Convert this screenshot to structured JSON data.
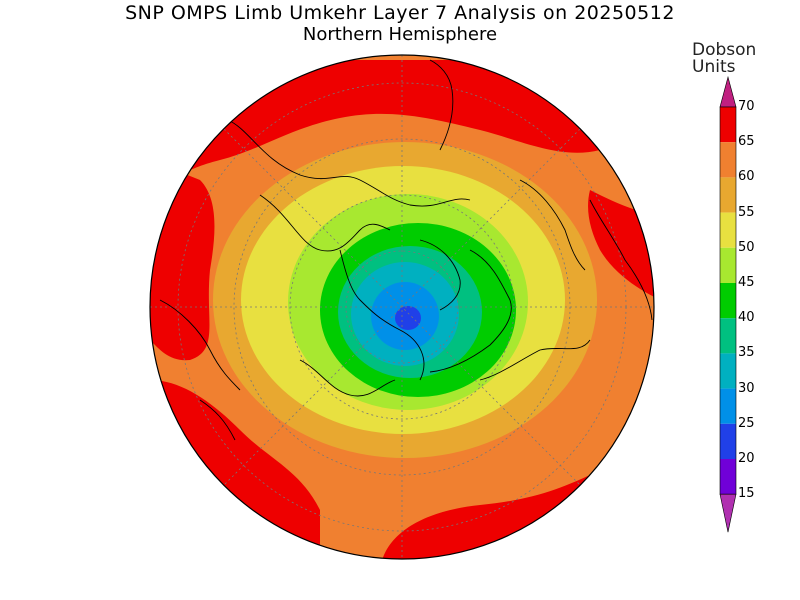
{
  "title": "SNP OMPS Limb Umkehr Layer 7 Analysis on 20250512",
  "subtitle": "Northern Hemisphere",
  "legend": {
    "unit_line1": "Dobson",
    "unit_line2": "Units",
    "ticks": [
      "70",
      "65",
      "60",
      "55",
      "50",
      "45",
      "40",
      "35",
      "30",
      "25",
      "20",
      "15"
    ],
    "colors": [
      "#ee0000",
      "#f08030",
      "#e8a830",
      "#e8e040",
      "#a8e830",
      "#00cc00",
      "#00c080",
      "#00b0c0",
      "#0090e8",
      "#2040e8",
      "#7000d8",
      "#a000c8"
    ],
    "over_color": "#c02080",
    "under_color": "#b030b0"
  },
  "map": {
    "projection": "north-polar-stereographic",
    "grid": true,
    "levels_colors": {
      "ge65": "#ee0000",
      "60_65": "#f08030",
      "55_60": "#e8a830",
      "50_55": "#e8e040",
      "45_50": "#a8e830",
      "40_45": "#00cc00",
      "35_40": "#00c080",
      "30_35": "#00b0c0",
      "25_30": "#0090e8",
      "20_25": "#2040e8"
    }
  }
}
